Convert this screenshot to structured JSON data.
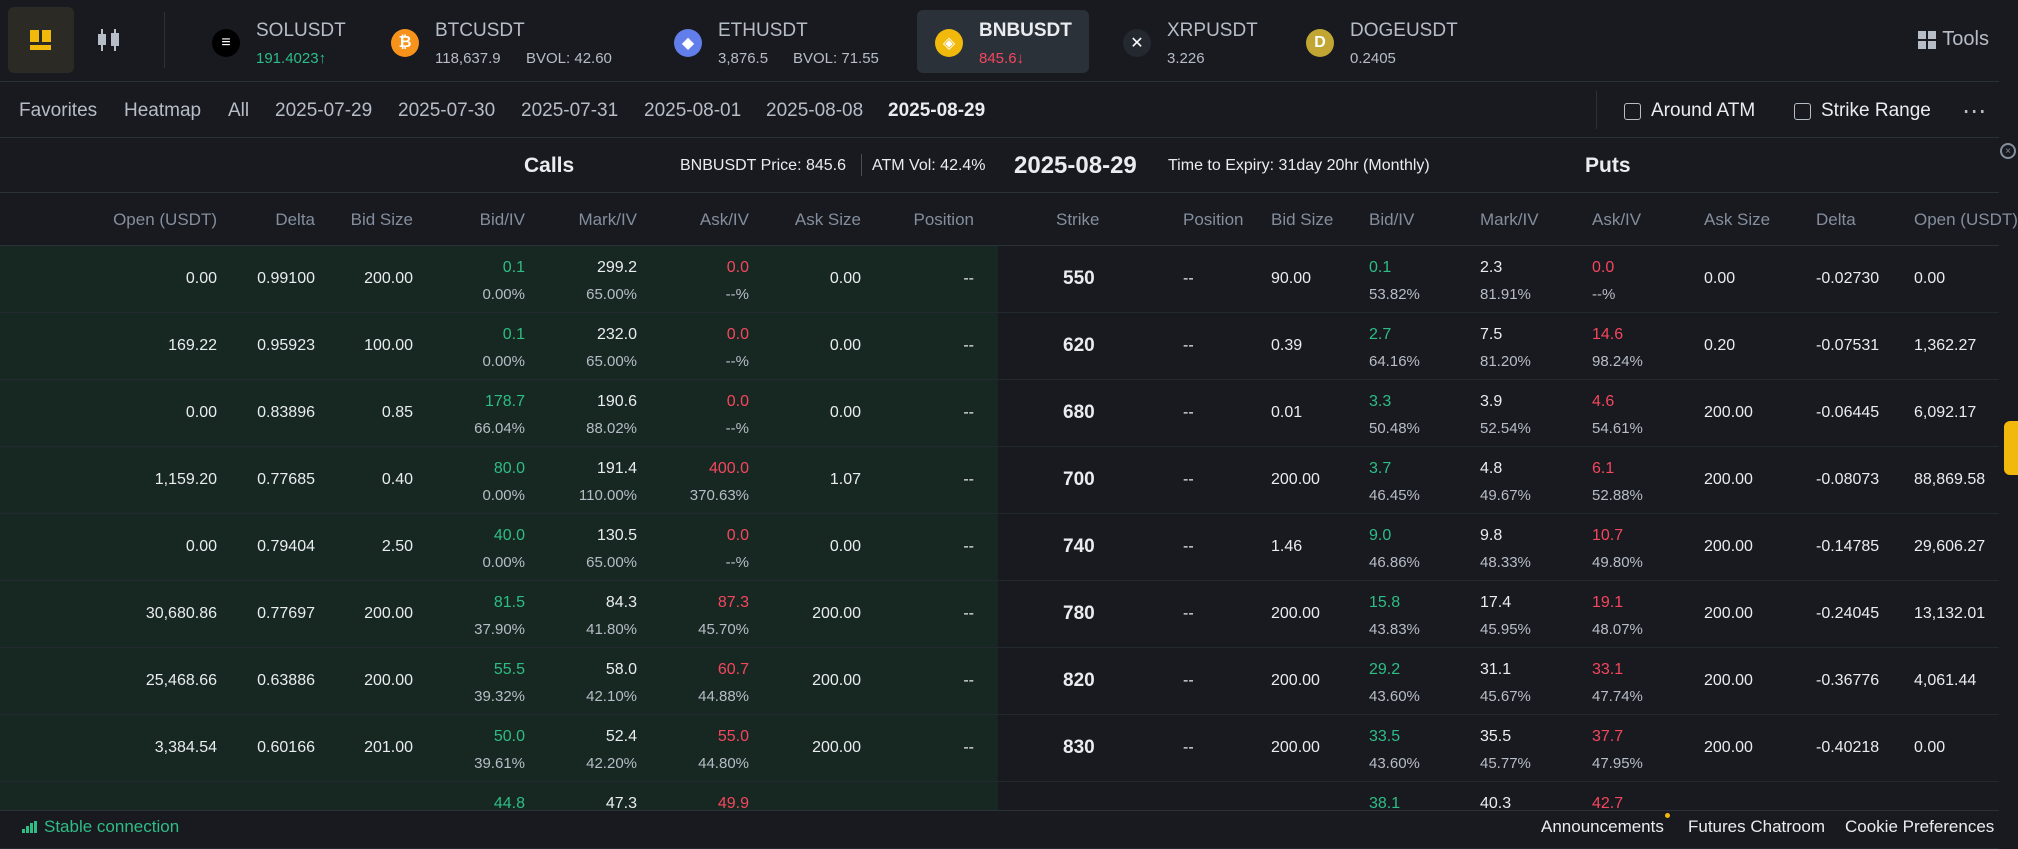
{
  "tickers": [
    {
      "symbol": "SOLUSDT",
      "price": "191.4023",
      "arrow": "↑",
      "price_color": "green",
      "bvol": "",
      "icon": "sol-icon"
    },
    {
      "symbol": "BTCUSDT",
      "price": "118,637.9",
      "arrow": "",
      "price_color": "",
      "bvol": "BVOL: 42.60",
      "icon": "btc-icon"
    },
    {
      "symbol": "ETHUSDT",
      "price": "3,876.5",
      "arrow": "",
      "price_color": "",
      "bvol": "BVOL: 71.55",
      "icon": "eth-icon"
    },
    {
      "symbol": "BNBUSDT",
      "price": "845.6",
      "arrow": "↓",
      "price_color": "red",
      "bvol": "",
      "icon": "bnb-icon"
    },
    {
      "symbol": "XRPUSDT",
      "price": "3.226",
      "arrow": "",
      "price_color": "",
      "bvol": "",
      "icon": "xrp-icon"
    },
    {
      "symbol": "DOGEUSDT",
      "price": "0.2405",
      "arrow": "",
      "price_color": "",
      "bvol": "",
      "icon": "doge-icon"
    }
  ],
  "tools_label": "Tools",
  "filters": [
    "Favorites",
    "Heatmap",
    "All",
    "2025-07-29",
    "2025-07-30",
    "2025-07-31",
    "2025-08-01",
    "2025-08-08",
    "2025-08-29"
  ],
  "active_filter": "2025-08-29",
  "around_atm": "Around ATM",
  "strike_range": "Strike Range",
  "header": {
    "calls": "Calls",
    "puts": "Puts",
    "price": "BNBUSDT Price: 845.6",
    "atm_vol": "ATM Vol: 42.4%",
    "date": "2025-08-29",
    "expiry": "Time to Expiry: 31day 20hr (Monthly)"
  },
  "call_columns": [
    "Open (USDT)",
    "Delta",
    "Bid Size",
    "Bid/IV",
    "Mark/IV",
    "Ask/IV",
    "Ask Size",
    "Position"
  ],
  "strike_column": "Strike",
  "put_columns": [
    "Position",
    "Bid Size",
    "Bid/IV",
    "Mark/IV",
    "Ask/IV",
    "Ask Size",
    "Delta",
    "Open (USDT)"
  ],
  "rows": [
    {
      "strike": "550",
      "call": {
        "open": "0.00",
        "delta": "0.99100",
        "bid_size": "200.00",
        "bid": "0.1",
        "bid_iv": "0.00%",
        "mark": "299.2",
        "mark_iv": "65.00%",
        "ask": "0.0",
        "ask_iv": "--%",
        "ask_size": "0.00",
        "position": "--"
      },
      "put": {
        "position": "--",
        "bid_size": "90.00",
        "bid": "0.1",
        "bid_iv": "53.82%",
        "mark": "2.3",
        "mark_iv": "81.91%",
        "ask": "0.0",
        "ask_iv": "--%",
        "ask_size": "0.00",
        "delta": "-0.02730",
        "open": "0.00"
      }
    },
    {
      "strike": "620",
      "call": {
        "open": "169.22",
        "delta": "0.95923",
        "bid_size": "100.00",
        "bid": "0.1",
        "bid_iv": "0.00%",
        "mark": "232.0",
        "mark_iv": "65.00%",
        "ask": "0.0",
        "ask_iv": "--%",
        "ask_size": "0.00",
        "position": "--"
      },
      "put": {
        "position": "--",
        "bid_size": "0.39",
        "bid": "2.7",
        "bid_iv": "64.16%",
        "mark": "7.5",
        "mark_iv": "81.20%",
        "ask": "14.6",
        "ask_iv": "98.24%",
        "ask_size": "0.20",
        "delta": "-0.07531",
        "open": "1,362.27"
      }
    },
    {
      "strike": "680",
      "call": {
        "open": "0.00",
        "delta": "0.83896",
        "bid_size": "0.85",
        "bid": "178.7",
        "bid_iv": "66.04%",
        "mark": "190.6",
        "mark_iv": "88.02%",
        "ask": "0.0",
        "ask_iv": "--%",
        "ask_size": "0.00",
        "position": "--"
      },
      "put": {
        "position": "--",
        "bid_size": "0.01",
        "bid": "3.3",
        "bid_iv": "50.48%",
        "mark": "3.9",
        "mark_iv": "52.54%",
        "ask": "4.6",
        "ask_iv": "54.61%",
        "ask_size": "200.00",
        "delta": "-0.06445",
        "open": "6,092.17"
      }
    },
    {
      "strike": "700",
      "call": {
        "open": "1,159.20",
        "delta": "0.77685",
        "bid_size": "0.40",
        "bid": "80.0",
        "bid_iv": "0.00%",
        "mark": "191.4",
        "mark_iv": "110.00%",
        "ask": "400.0",
        "ask_iv": "370.63%",
        "ask_size": "1.07",
        "position": "--"
      },
      "put": {
        "position": "--",
        "bid_size": "200.00",
        "bid": "3.7",
        "bid_iv": "46.45%",
        "mark": "4.8",
        "mark_iv": "49.67%",
        "ask": "6.1",
        "ask_iv": "52.88%",
        "ask_size": "200.00",
        "delta": "-0.08073",
        "open": "88,869.58"
      }
    },
    {
      "strike": "740",
      "call": {
        "open": "0.00",
        "delta": "0.79404",
        "bid_size": "2.50",
        "bid": "40.0",
        "bid_iv": "0.00%",
        "mark": "130.5",
        "mark_iv": "65.00%",
        "ask": "0.0",
        "ask_iv": "--%",
        "ask_size": "0.00",
        "position": "--"
      },
      "put": {
        "position": "--",
        "bid_size": "1.46",
        "bid": "9.0",
        "bid_iv": "46.86%",
        "mark": "9.8",
        "mark_iv": "48.33%",
        "ask": "10.7",
        "ask_iv": "49.80%",
        "ask_size": "200.00",
        "delta": "-0.14785",
        "open": "29,606.27"
      }
    },
    {
      "strike": "780",
      "call": {
        "open": "30,680.86",
        "delta": "0.77697",
        "bid_size": "200.00",
        "bid": "81.5",
        "bid_iv": "37.90%",
        "mark": "84.3",
        "mark_iv": "41.80%",
        "ask": "87.3",
        "ask_iv": "45.70%",
        "ask_size": "200.00",
        "position": "--"
      },
      "put": {
        "position": "--",
        "bid_size": "200.00",
        "bid": "15.8",
        "bid_iv": "43.83%",
        "mark": "17.4",
        "mark_iv": "45.95%",
        "ask": "19.1",
        "ask_iv": "48.07%",
        "ask_size": "200.00",
        "delta": "-0.24045",
        "open": "13,132.01"
      }
    },
    {
      "strike": "820",
      "call": {
        "open": "25,468.66",
        "delta": "0.63886",
        "bid_size": "200.00",
        "bid": "55.5",
        "bid_iv": "39.32%",
        "mark": "58.0",
        "mark_iv": "42.10%",
        "ask": "60.7",
        "ask_iv": "44.88%",
        "ask_size": "200.00",
        "position": "--"
      },
      "put": {
        "position": "--",
        "bid_size": "200.00",
        "bid": "29.2",
        "bid_iv": "43.60%",
        "mark": "31.1",
        "mark_iv": "45.67%",
        "ask": "33.1",
        "ask_iv": "47.74%",
        "ask_size": "200.00",
        "delta": "-0.36776",
        "open": "4,061.44"
      }
    },
    {
      "strike": "830",
      "call": {
        "open": "3,384.54",
        "delta": "0.60166",
        "bid_size": "201.00",
        "bid": "50.0",
        "bid_iv": "39.61%",
        "mark": "52.4",
        "mark_iv": "42.20%",
        "ask": "55.0",
        "ask_iv": "44.80%",
        "ask_size": "200.00",
        "position": "--"
      },
      "put": {
        "position": "--",
        "bid_size": "200.00",
        "bid": "33.5",
        "bid_iv": "43.60%",
        "mark": "35.5",
        "mark_iv": "45.77%",
        "ask": "37.7",
        "ask_iv": "47.95%",
        "ask_size": "200.00",
        "delta": "-0.40218",
        "open": "0.00"
      }
    },
    {
      "strike": "",
      "call": {
        "open": "",
        "delta": "",
        "bid_size": "",
        "bid": "44.8",
        "bid_iv": "",
        "mark": "47.3",
        "mark_iv": "",
        "ask": "49.9",
        "ask_iv": "",
        "ask_size": "",
        "position": ""
      },
      "put": {
        "position": "",
        "bid_size": "",
        "bid": "38.1",
        "bid_iv": "",
        "mark": "40.3",
        "mark_iv": "",
        "ask": "42.7",
        "ask_iv": "",
        "ask_size": "",
        "delta": "",
        "open": ""
      }
    }
  ],
  "footer": {
    "connection": "Stable connection",
    "announcements": "Announcements",
    "chatroom": "Futures Chatroom",
    "cookies": "Cookie Preferences"
  },
  "colors": {
    "green": "#2ebd85",
    "red": "#f6465d",
    "accent": "#f0b90b",
    "bg": "#181a20"
  }
}
